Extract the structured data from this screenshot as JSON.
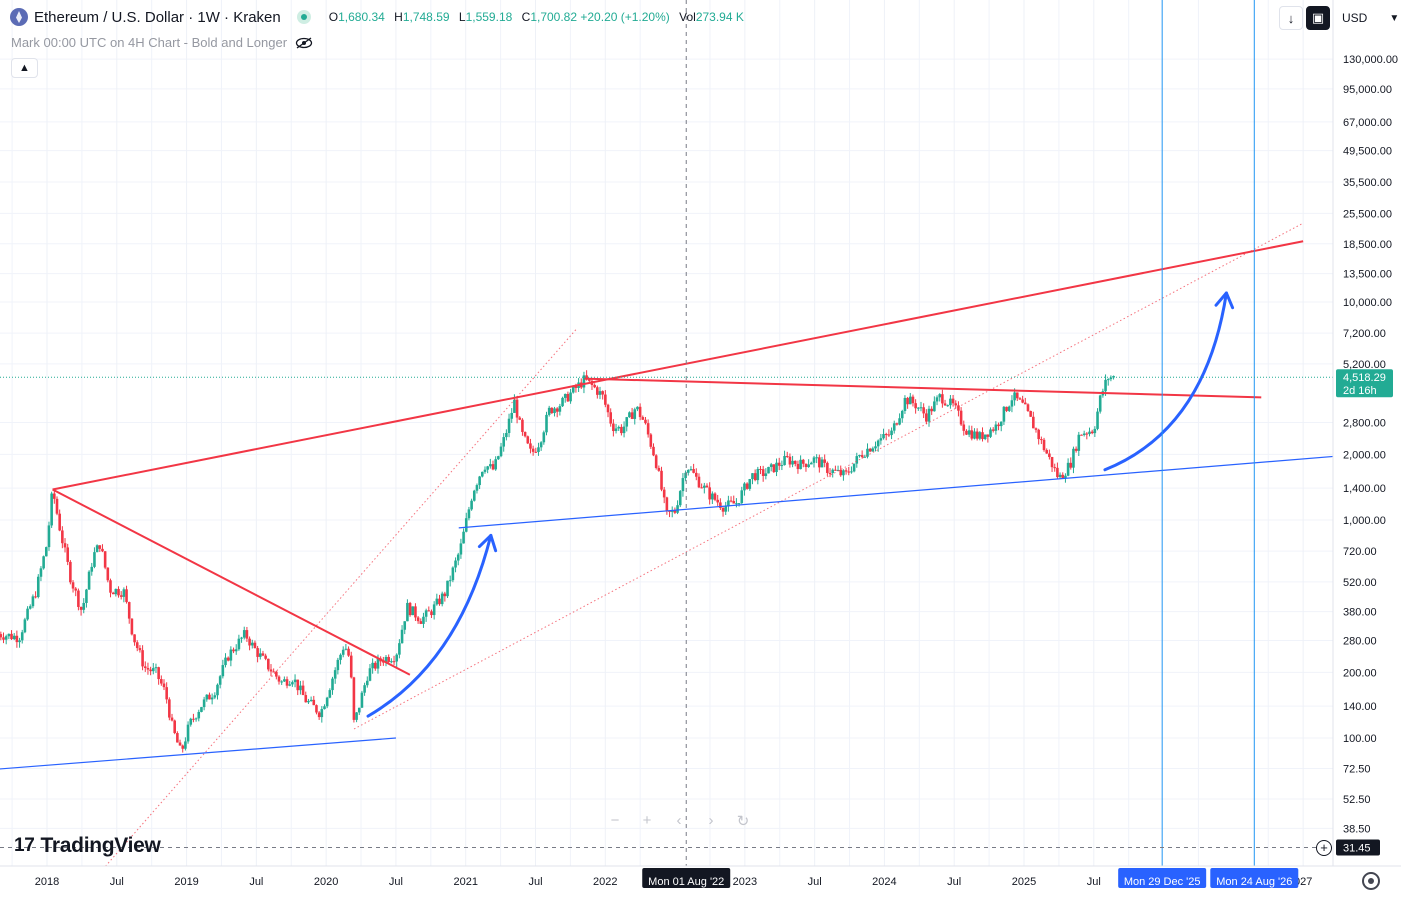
{
  "header": {
    "symbol": "Ethereum / U.S. Dollar · 1W · Kraken",
    "o_label": "O",
    "o_value": "1,680.34",
    "h_label": "H",
    "h_value": "1,748.59",
    "l_label": "L",
    "l_value": "1,559.18",
    "c_label": "C",
    "c_value": "1,700.82",
    "change": "+20.20 (+1.20%)",
    "vol_label": "Vol",
    "vol_value": "273.94 K",
    "subtitle": "Mark 00:00 UTC on 4H Chart - Bold and Longer",
    "currency": "USD"
  },
  "branding": {
    "logo_text": "TradingView"
  },
  "chart_data": {
    "type": "candlestick",
    "scale": "log",
    "ylim": [
      28,
      200000
    ],
    "y_ticks": [
      {
        "v": 130000,
        "label": "130,000.00"
      },
      {
        "v": 95000,
        "label": "95,000.00"
      },
      {
        "v": 67000,
        "label": "67,000.00"
      },
      {
        "v": 49500,
        "label": "49,500.00"
      },
      {
        "v": 35500,
        "label": "35,500.00"
      },
      {
        "v": 25500,
        "label": "25,500.00"
      },
      {
        "v": 18500,
        "label": "18,500.00"
      },
      {
        "v": 13500,
        "label": "13,500.00"
      },
      {
        "v": 10000,
        "label": "10,000.00"
      },
      {
        "v": 7200,
        "label": "7,200.00"
      },
      {
        "v": 5200,
        "label": "5,200.00"
      },
      {
        "v": 2800,
        "label": "2,800.00"
      },
      {
        "v": 2000,
        "label": "2,000.00"
      },
      {
        "v": 1400,
        "label": "1,400.00"
      },
      {
        "v": 1000,
        "label": "1,000.00"
      },
      {
        "v": 720,
        "label": "720.00"
      },
      {
        "v": 520,
        "label": "520.00"
      },
      {
        "v": 380,
        "label": "380.00"
      },
      {
        "v": 280,
        "label": "280.00"
      },
      {
        "v": 200,
        "label": "200.00"
      },
      {
        "v": 140,
        "label": "140.00"
      },
      {
        "v": 100,
        "label": "100.00"
      },
      {
        "v": 72.5,
        "label": "72.50"
      },
      {
        "v": 52.5,
        "label": "52.50"
      },
      {
        "v": 38.5,
        "label": "38.50"
      }
    ],
    "x_ticks": [
      {
        "t": 2018.0,
        "label": "2018"
      },
      {
        "t": 2018.5,
        "label": "Jul"
      },
      {
        "t": 2019.0,
        "label": "2019"
      },
      {
        "t": 2019.5,
        "label": "Jul"
      },
      {
        "t": 2020.0,
        "label": "2020"
      },
      {
        "t": 2020.5,
        "label": "Jul"
      },
      {
        "t": 2021.0,
        "label": "2021"
      },
      {
        "t": 2021.5,
        "label": "Jul"
      },
      {
        "t": 2022.0,
        "label": "2022"
      },
      {
        "t": 2023.0,
        "label": "2023"
      },
      {
        "t": 2023.5,
        "label": "Jul"
      },
      {
        "t": 2024.0,
        "label": "2024"
      },
      {
        "t": 2024.5,
        "label": "Jul"
      },
      {
        "t": 2025.0,
        "label": "2025"
      },
      {
        "t": 2025.5,
        "label": "Jul"
      },
      {
        "t": 2027.0,
        "label": "027"
      }
    ],
    "price_path": [
      [
        2017.65,
        300
      ],
      [
        2017.8,
        290
      ],
      [
        2017.92,
        470
      ],
      [
        2018.0,
        780
      ],
      [
        2018.04,
        1380
      ],
      [
        2018.1,
        860
      ],
      [
        2018.17,
        540
      ],
      [
        2018.25,
        380
      ],
      [
        2018.33,
        680
      ],
      [
        2018.38,
        780
      ],
      [
        2018.45,
        480
      ],
      [
        2018.55,
        470
      ],
      [
        2018.62,
        290
      ],
      [
        2018.7,
        210
      ],
      [
        2018.78,
        200
      ],
      [
        2018.85,
        160
      ],
      [
        2018.9,
        110
      ],
      [
        2018.96,
        85
      ],
      [
        2019.02,
        115
      ],
      [
        2019.1,
        140
      ],
      [
        2019.2,
        165
      ],
      [
        2019.3,
        240
      ],
      [
        2019.42,
        300
      ],
      [
        2019.48,
        260
      ],
      [
        2019.58,
        215
      ],
      [
        2019.68,
        180
      ],
      [
        2019.76,
        190
      ],
      [
        2019.85,
        150
      ],
      [
        2019.96,
        130
      ],
      [
        2020.08,
        220
      ],
      [
        2020.13,
        270
      ],
      [
        2020.17,
        230
      ],
      [
        2020.2,
        115
      ],
      [
        2020.3,
        200
      ],
      [
        2020.4,
        230
      ],
      [
        2020.5,
        240
      ],
      [
        2020.58,
        400
      ],
      [
        2020.68,
        350
      ],
      [
        2020.75,
        380
      ],
      [
        2020.85,
        460
      ],
      [
        2020.96,
        730
      ],
      [
        2021.05,
        1350
      ],
      [
        2021.13,
        1800
      ],
      [
        2021.2,
        1700
      ],
      [
        2021.28,
        2400
      ],
      [
        2021.35,
        3500
      ],
      [
        2021.4,
        2500
      ],
      [
        2021.47,
        2000
      ],
      [
        2021.53,
        2300
      ],
      [
        2021.6,
        3200
      ],
      [
        2021.68,
        3400
      ],
      [
        2021.75,
        3800
      ],
      [
        2021.85,
        4400
      ],
      [
        2021.93,
        4000
      ],
      [
        2021.98,
        3700
      ],
      [
        2022.05,
        2700
      ],
      [
        2022.12,
        2600
      ],
      [
        2022.22,
        3300
      ],
      [
        2022.28,
        2800
      ],
      [
        2022.36,
        1900
      ],
      [
        2022.44,
        1050
      ],
      [
        2022.5,
        1100
      ],
      [
        2022.58,
        1800
      ],
      [
        2022.67,
        1500
      ],
      [
        2022.75,
        1300
      ],
      [
        2022.85,
        1150
      ],
      [
        2022.94,
        1200
      ],
      [
        2023.05,
        1600
      ],
      [
        2023.15,
        1650
      ],
      [
        2023.3,
        1900
      ],
      [
        2023.4,
        1800
      ],
      [
        2023.5,
        1900
      ],
      [
        2023.6,
        1700
      ],
      [
        2023.72,
        1600
      ],
      [
        2023.83,
        2000
      ],
      [
        2023.95,
        2300
      ],
      [
        2024.05,
        2500
      ],
      [
        2024.15,
        3600
      ],
      [
        2024.22,
        3400
      ],
      [
        2024.3,
        3000
      ],
      [
        2024.4,
        3700
      ],
      [
        2024.5,
        3300
      ],
      [
        2024.58,
        2600
      ],
      [
        2024.68,
        2400
      ],
      [
        2024.8,
        2700
      ],
      [
        2024.92,
        3700
      ],
      [
        2025.0,
        3300
      ],
      [
        2025.07,
        2700
      ],
      [
        2025.15,
        2100
      ],
      [
        2025.25,
        1550
      ],
      [
        2025.33,
        1800
      ],
      [
        2025.4,
        2500
      ],
      [
        2025.5,
        2600
      ],
      [
        2025.55,
        3700
      ],
      [
        2025.6,
        4500
      ],
      [
        2025.65,
        4518
      ]
    ],
    "current_price": {
      "value": 4518.29,
      "label": "4,518.29",
      "countdown": "2d 16h"
    },
    "crosshair": {
      "price_label": "31.45",
      "time_label": "Mon 01 Aug '22"
    },
    "markers": [
      {
        "label": "Mon 29 Dec '25",
        "t": 2025.99
      },
      {
        "label": "Mon 24 Aug '26",
        "t": 2026.65
      }
    ],
    "annotations": {
      "red_lines": [
        {
          "from": [
            2018.04,
            1380
          ],
          "to": [
            2027.0,
            19000
          ]
        },
        {
          "from": [
            2018.04,
            1380
          ],
          "to": [
            2020.6,
            195
          ]
        },
        {
          "from": [
            2021.85,
            4450
          ],
          "to": [
            2026.7,
            3650
          ]
        }
      ],
      "blue_lines": [
        {
          "from": [
            2017.65,
            72
          ],
          "to": [
            2020.5,
            100
          ]
        },
        {
          "from": [
            2020.95,
            920
          ],
          "to": [
            2027.6,
            2050
          ]
        }
      ],
      "dotted_lines": [
        {
          "from": [
            2018.4,
            25
          ],
          "to": [
            2021.8,
            7600
          ]
        },
        {
          "from": [
            2020.2,
            110
          ],
          "to": [
            2027.0,
            23000
          ]
        }
      ],
      "arrows": [
        {
          "from": [
            2020.3,
            126
          ],
          "ctrl": [
            2020.95,
            220
          ],
          "to": [
            2021.18,
            850
          ]
        },
        {
          "from": [
            2025.58,
            1700
          ],
          "ctrl": [
            2026.3,
            2600
          ],
          "to": [
            2026.45,
            11000
          ]
        }
      ]
    },
    "colors": {
      "up": "#22ab94",
      "down": "#f23645",
      "red_line": "#f23645",
      "blue_line": "#2962ff",
      "marker_line": "#2196f3",
      "grid": "#f0f3fa"
    }
  }
}
